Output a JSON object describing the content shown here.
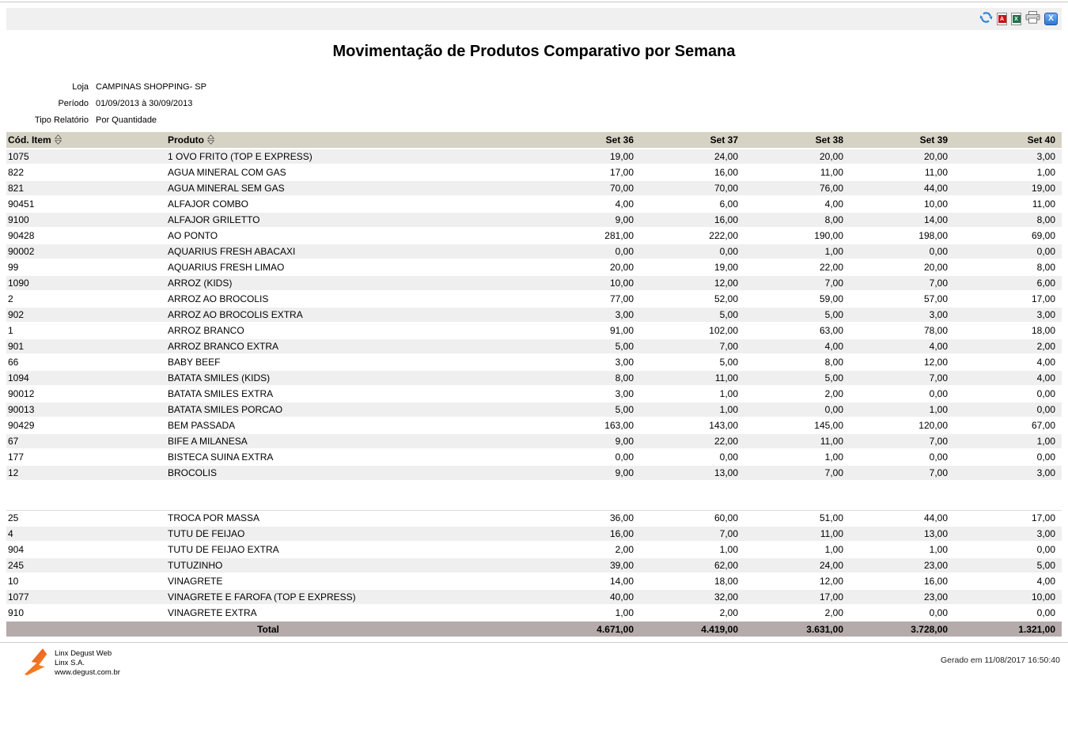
{
  "toolbar": {
    "icons": [
      {
        "name": "refresh-icon"
      },
      {
        "name": "pdf-export-icon",
        "glyph": "A"
      },
      {
        "name": "excel-export-icon",
        "glyph": "X"
      },
      {
        "name": "print-icon"
      },
      {
        "name": "close-icon",
        "glyph": "X"
      }
    ]
  },
  "title": "Movimentação de Produtos Comparativo por Semana",
  "meta": {
    "rows": [
      {
        "label": "Loja",
        "value": "CAMPINAS SHOPPING- SP"
      },
      {
        "label": "Período",
        "value": "01/09/2013 à 30/09/2013"
      },
      {
        "label": "Tipo Relatório",
        "value": "Por Quantidade"
      }
    ]
  },
  "table": {
    "columns": [
      "Cód. Item",
      "Produto",
      "Set 36",
      "Set 37",
      "Set 38",
      "Set 39",
      "Set 40"
    ],
    "sections": [
      {
        "rows": [
          [
            "1075",
            "1 OVO FRITO (TOP E EXPRESS)",
            "19,00",
            "24,00",
            "20,00",
            "20,00",
            "3,00"
          ],
          [
            "822",
            "AGUA MINERAL COM GAS",
            "17,00",
            "16,00",
            "11,00",
            "11,00",
            "1,00"
          ],
          [
            "821",
            "AGUA MINERAL SEM GAS",
            "70,00",
            "70,00",
            "76,00",
            "44,00",
            "19,00"
          ],
          [
            "90451",
            "ALFAJOR COMBO",
            "4,00",
            "6,00",
            "4,00",
            "10,00",
            "11,00"
          ],
          [
            "9100",
            "ALFAJOR GRILETTO",
            "9,00",
            "16,00",
            "8,00",
            "14,00",
            "8,00"
          ],
          [
            "90428",
            "AO PONTO",
            "281,00",
            "222,00",
            "190,00",
            "198,00",
            "69,00"
          ],
          [
            "90002",
            "AQUARIUS FRESH ABACAXI",
            "0,00",
            "0,00",
            "1,00",
            "0,00",
            "0,00"
          ],
          [
            "99",
            "AQUARIUS FRESH LIMAO",
            "20,00",
            "19,00",
            "22,00",
            "20,00",
            "8,00"
          ],
          [
            "1090",
            "ARROZ (KIDS)",
            "10,00",
            "12,00",
            "7,00",
            "7,00",
            "6,00"
          ],
          [
            "2",
            "ARROZ AO BROCOLIS",
            "77,00",
            "52,00",
            "59,00",
            "57,00",
            "17,00"
          ],
          [
            "902",
            "ARROZ AO BROCOLIS EXTRA",
            "3,00",
            "5,00",
            "5,00",
            "3,00",
            "3,00"
          ],
          [
            "1",
            "ARROZ BRANCO",
            "91,00",
            "102,00",
            "63,00",
            "78,00",
            "18,00"
          ],
          [
            "901",
            "ARROZ BRANCO EXTRA",
            "5,00",
            "7,00",
            "4,00",
            "4,00",
            "2,00"
          ],
          [
            "66",
            "BABY BEEF",
            "3,00",
            "5,00",
            "8,00",
            "12,00",
            "4,00"
          ],
          [
            "1094",
            "BATATA SMILES (KIDS)",
            "8,00",
            "11,00",
            "5,00",
            "7,00",
            "4,00"
          ],
          [
            "90012",
            "BATATA SMILES EXTRA",
            "3,00",
            "1,00",
            "2,00",
            "0,00",
            "0,00"
          ],
          [
            "90013",
            "BATATA SMILES PORCAO",
            "5,00",
            "1,00",
            "0,00",
            "1,00",
            "0,00"
          ],
          [
            "90429",
            "BEM PASSADA",
            "163,00",
            "143,00",
            "145,00",
            "120,00",
            "67,00"
          ],
          [
            "67",
            "BIFE A MILANESA",
            "9,00",
            "22,00",
            "11,00",
            "7,00",
            "1,00"
          ],
          [
            "177",
            "BISTECA SUINA EXTRA",
            "0,00",
            "0,00",
            "1,00",
            "0,00",
            "0,00"
          ],
          [
            "12",
            "BROCOLIS",
            "9,00",
            "13,00",
            "7,00",
            "7,00",
            "3,00"
          ]
        ]
      },
      {
        "rows": [
          [
            "25",
            "TROCA POR MASSA",
            "36,00",
            "60,00",
            "51,00",
            "44,00",
            "17,00"
          ],
          [
            "4",
            "TUTU DE FEIJAO",
            "16,00",
            "7,00",
            "11,00",
            "13,00",
            "3,00"
          ],
          [
            "904",
            "TUTU DE FEIJAO EXTRA",
            "2,00",
            "1,00",
            "1,00",
            "1,00",
            "0,00"
          ],
          [
            "245",
            "TUTUZINHO",
            "39,00",
            "62,00",
            "24,00",
            "23,00",
            "5,00"
          ],
          [
            "10",
            "VINAGRETE",
            "14,00",
            "18,00",
            "12,00",
            "16,00",
            "4,00"
          ],
          [
            "1077",
            "VINAGRETE E FAROFA (TOP E EXPRESS)",
            "40,00",
            "32,00",
            "17,00",
            "23,00",
            "10,00"
          ],
          [
            "910",
            "VINAGRETE EXTRA",
            "1,00",
            "2,00",
            "2,00",
            "0,00",
            "0,00"
          ]
        ]
      }
    ],
    "total": {
      "label": "Total",
      "values": [
        "4.671,00",
        "4.419,00",
        "3.631,00",
        "3.728,00",
        "1.321,00"
      ]
    }
  },
  "footer": {
    "app_name": "Linx Degust Web",
    "company": "Linx S.A.",
    "website": "www.degust.com.br",
    "generated": "Gerado em 11/08/2017 16:50:40"
  },
  "colors": {
    "header_bg": "#d6d2c4",
    "row_alt_bg": "#efefef",
    "total_row_bg": "#b5abab",
    "refresh_blue": "#2a82d4",
    "pdf_red": "#cc1111",
    "excel_green": "#1e7145",
    "close_blue": "#2f77d0",
    "logo_red": "#e8412c",
    "logo_orange": "#f7941d"
  }
}
